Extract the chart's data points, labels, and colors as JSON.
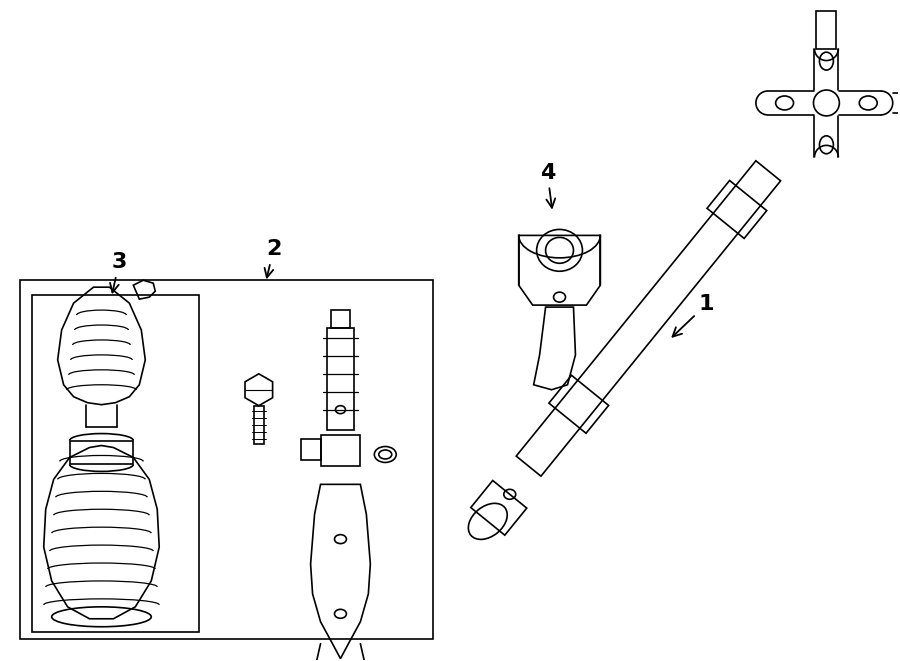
{
  "bg_color": "#ffffff",
  "line_color": "#000000",
  "line_width": 1.2,
  "fig_width": 9.0,
  "fig_height": 6.61,
  "dpi": 100
}
